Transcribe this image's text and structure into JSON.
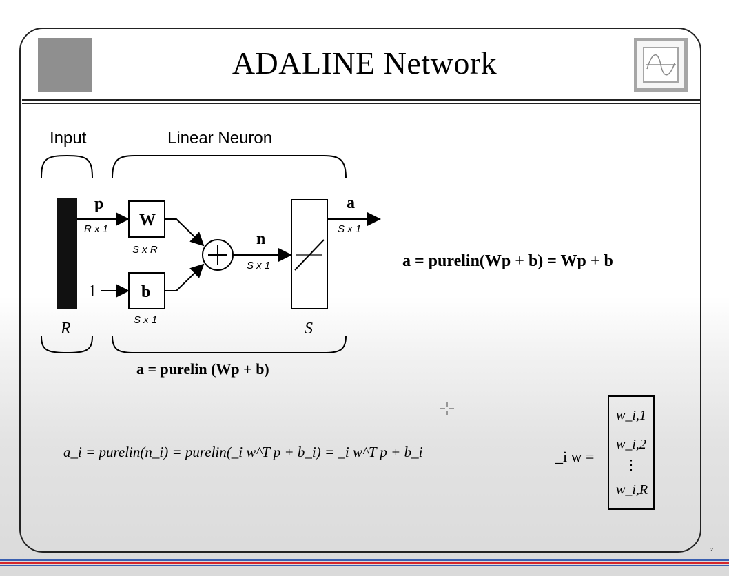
{
  "slide": {
    "title": "ADALINE Network",
    "page_number": "2"
  },
  "diagram": {
    "input_label": "Input",
    "neuron_label": "Linear Neuron",
    "p_label": "p",
    "p_dim": "R x 1",
    "w_label": "W",
    "w_dim": "S x R",
    "one_label": "1",
    "b_label": "b",
    "b_dim": "S x 1",
    "n_label": "n",
    "n_dim": "S x 1",
    "a_label": "a",
    "a_dim": "S x 1",
    "r_label": "R",
    "s_label": "S",
    "caption": "a = purelin (Wp + b)"
  },
  "equations": {
    "main": "a = purelin(Wp + b) = Wp + b",
    "row_i": "a_i = purelin(n_i) = purelin(_i w^T p + b_i) = _i w^T p + b_i",
    "iw_label": "_i w =",
    "iw_rows": [
      "w_i,1",
      "w_i,2",
      "⋮",
      "w_i,R"
    ]
  }
}
